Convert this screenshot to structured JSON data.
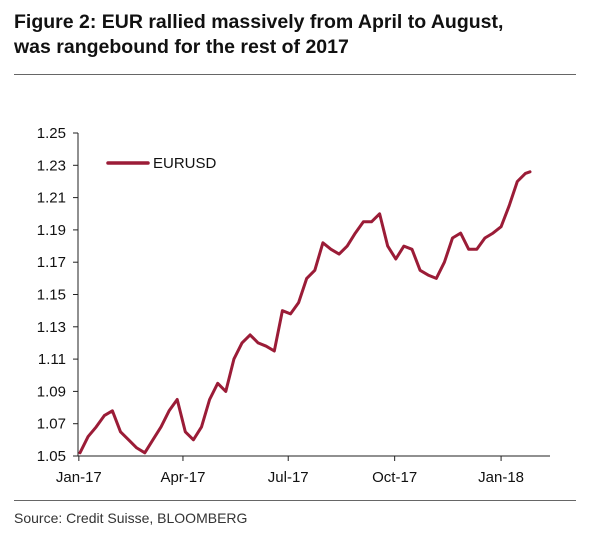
{
  "header": {
    "title_line1": "Figure 2: EUR rallied massively from April to August,",
    "title_line2": "was rangebound for the rest of 2017"
  },
  "footer": {
    "source": "Source: Credit Suisse, BLOOMBERG"
  },
  "colors": {
    "series": "#9b1c37",
    "axis": "#222222"
  },
  "chart_data": {
    "type": "line",
    "title": "",
    "xlabel": "",
    "ylabel": "",
    "ylim": [
      1.05,
      1.25
    ],
    "y_ticks": [
      1.05,
      1.07,
      1.09,
      1.11,
      1.13,
      1.15,
      1.17,
      1.19,
      1.21,
      1.23,
      1.25
    ],
    "y_tick_labels": [
      "1.05",
      "1.07",
      "1.09",
      "1.11",
      "1.13",
      "1.15",
      "1.17",
      "1.19",
      "1.21",
      "1.23",
      "1.25"
    ],
    "x_range": [
      "2017-01-02",
      "2018-01-26"
    ],
    "x_ticks": [
      "2017-01-01",
      "2017-04-01",
      "2017-07-01",
      "2017-10-01",
      "2018-01-01"
    ],
    "x_tick_labels": [
      "Jan-17",
      "Apr-17",
      "Jul-17",
      "Oct-17",
      "Jan-18"
    ],
    "grid": false,
    "legend_position": "top-left",
    "series": [
      {
        "name": "EURUSD",
        "x": [
          "2017-01-02",
          "2017-01-09",
          "2017-01-16",
          "2017-01-23",
          "2017-01-30",
          "2017-02-06",
          "2017-02-13",
          "2017-02-20",
          "2017-02-27",
          "2017-03-06",
          "2017-03-13",
          "2017-03-20",
          "2017-03-27",
          "2017-04-03",
          "2017-04-10",
          "2017-04-17",
          "2017-04-24",
          "2017-05-01",
          "2017-05-08",
          "2017-05-15",
          "2017-05-22",
          "2017-05-29",
          "2017-06-05",
          "2017-06-12",
          "2017-06-19",
          "2017-06-26",
          "2017-07-03",
          "2017-07-10",
          "2017-07-17",
          "2017-07-24",
          "2017-07-31",
          "2017-08-07",
          "2017-08-14",
          "2017-08-21",
          "2017-08-28",
          "2017-09-04",
          "2017-09-11",
          "2017-09-18",
          "2017-09-25",
          "2017-10-02",
          "2017-10-09",
          "2017-10-16",
          "2017-10-23",
          "2017-10-30",
          "2017-11-06",
          "2017-11-13",
          "2017-11-20",
          "2017-11-27",
          "2017-12-04",
          "2017-12-11",
          "2017-12-18",
          "2017-12-25",
          "2018-01-01",
          "2018-01-08",
          "2018-01-15",
          "2018-01-22",
          "2018-01-26"
        ],
        "values": [
          1.052,
          1.062,
          1.068,
          1.075,
          1.078,
          1.065,
          1.06,
          1.055,
          1.052,
          1.06,
          1.068,
          1.078,
          1.085,
          1.065,
          1.06,
          1.068,
          1.085,
          1.095,
          1.09,
          1.11,
          1.12,
          1.125,
          1.12,
          1.118,
          1.115,
          1.14,
          1.138,
          1.145,
          1.16,
          1.165,
          1.182,
          1.178,
          1.175,
          1.18,
          1.188,
          1.195,
          1.195,
          1.2,
          1.18,
          1.172,
          1.18,
          1.178,
          1.165,
          1.162,
          1.16,
          1.17,
          1.185,
          1.188,
          1.178,
          1.178,
          1.185,
          1.188,
          1.192,
          1.205,
          1.22,
          1.225,
          1.226
        ]
      }
    ]
  }
}
